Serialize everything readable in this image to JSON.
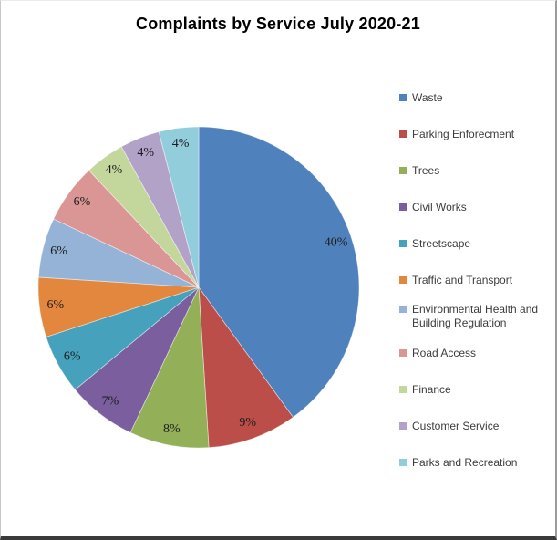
{
  "title": "Complaints by Service July 2020-21",
  "chart_data": {
    "type": "pie",
    "title": "Complaints by Service July 2020-21",
    "categories": [
      "Waste",
      "Parking Enforecment",
      "Trees",
      "Civil Works",
      "Streetscape",
      "Traffic and Transport",
      "Environmental Health and Building Regulation",
      "Road Access",
      "Finance",
      "Customer Service",
      "Parks and Recreation"
    ],
    "values": [
      40,
      9,
      8,
      7,
      6,
      6,
      6,
      6,
      4,
      4,
      4
    ],
    "slice_labels": [
      "40%",
      "9%",
      "8%",
      "7%",
      "6%",
      "6%",
      "6%",
      "6%",
      "4%",
      "4%",
      "4%"
    ],
    "colors": [
      "#4F81BD",
      "#BC4E4A",
      "#93B059",
      "#7A5E9E",
      "#46A2BC",
      "#E2873D",
      "#95B3D7",
      "#D99694",
      "#C3D69B",
      "#B2A2C7",
      "#92CDDC"
    ],
    "units": "percent",
    "start_angle_deg": 0,
    "direction": "clockwise",
    "legend_position": "right",
    "label_radius_fraction": 0.9
  }
}
